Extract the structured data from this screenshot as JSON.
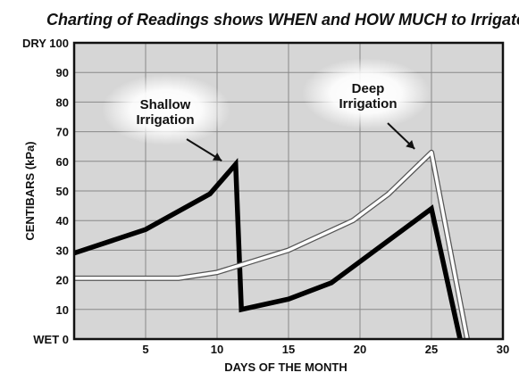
{
  "chart_data": {
    "type": "line",
    "title": "Charting of Readings shows WHEN and HOW MUCH to Irrigate",
    "xlabel": "DAYS OF THE MONTH",
    "ylabel": "CENTIBARS (kPa)",
    "xlim": [
      0,
      30
    ],
    "ylim": [
      0,
      100
    ],
    "x_ticks": [
      "5",
      "10",
      "15",
      "20",
      "25",
      "30"
    ],
    "y_ticks": [
      "WET 0",
      "10",
      "20",
      "30",
      "40",
      "50",
      "60",
      "70",
      "80",
      "90",
      "DRY 100"
    ],
    "grid": true,
    "series": [
      {
        "color": "#000000",
        "points": [
          [
            0,
            29
          ],
          [
            5,
            37
          ],
          [
            9.5,
            49
          ],
          [
            11.3,
            59
          ],
          [
            11.7,
            10
          ],
          [
            15,
            13.5
          ],
          [
            18,
            19
          ],
          [
            25,
            44
          ],
          [
            27,
            0
          ]
        ]
      },
      {
        "color": "#ffffff",
        "points": [
          [
            0,
            20.5
          ],
          [
            7.3,
            20.5
          ],
          [
            10,
            22.5
          ],
          [
            15,
            30
          ],
          [
            19.5,
            40
          ],
          [
            22,
            49
          ],
          [
            25,
            63
          ],
          [
            27.5,
            0
          ]
        ]
      }
    ],
    "annotations": [
      {
        "lines": [
          "Shallow",
          "Irrigation"
        ],
        "target": [
          11.2,
          59
        ]
      },
      {
        "lines": [
          "Deep",
          "Irrigation"
        ],
        "target": [
          24.7,
          63
        ]
      }
    ]
  }
}
